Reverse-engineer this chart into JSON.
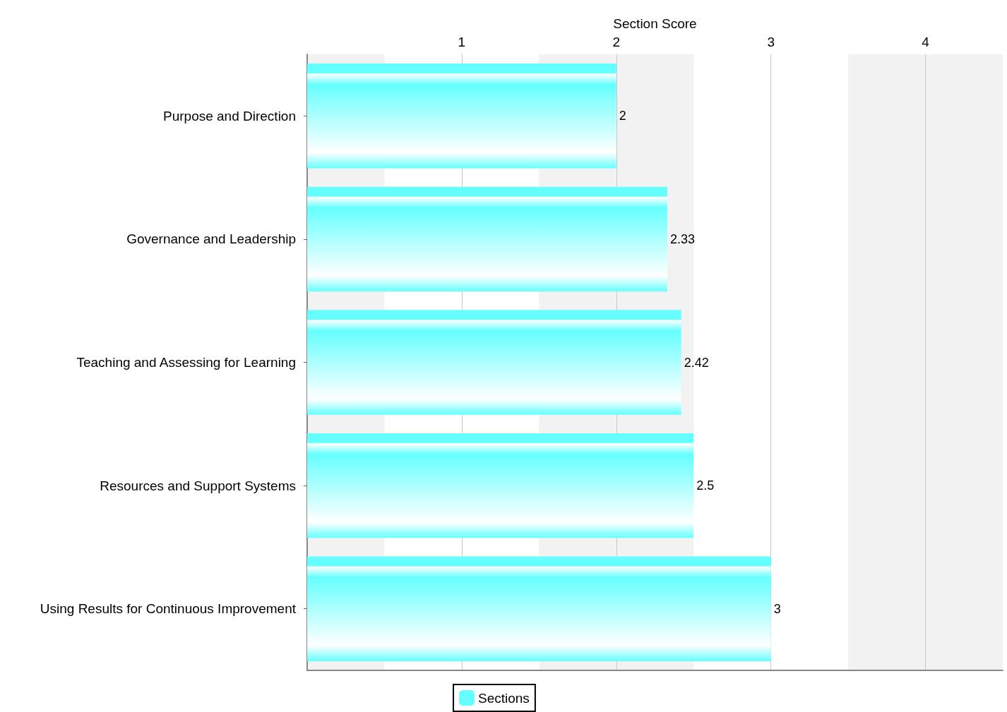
{
  "chart_data": {
    "type": "bar",
    "orientation": "horizontal",
    "xlabel": "Section Score",
    "categories": [
      "Purpose and Direction",
      "Governance and Leadership",
      "Teaching and Assessing for Learning",
      "Resources and Support Systems",
      "Using Results for Continuous Improvement"
    ],
    "series": [
      {
        "name": "Sections",
        "color": "#66ffff",
        "values": [
          2,
          2.33,
          2.42,
          2.5,
          3
        ]
      }
    ],
    "xlim": [
      0,
      4.5
    ],
    "xticks": [
      1,
      2,
      3,
      4
    ],
    "grid": "x",
    "data_labels": true,
    "legend": "bottom",
    "bands": [
      {
        "axis": "x",
        "from": 0,
        "to": 0.5,
        "color": "#f2f2f2"
      },
      {
        "axis": "x",
        "from": 1.5,
        "to": 2.5,
        "color": "#f2f2f2"
      },
      {
        "axis": "x",
        "from": 3.5,
        "to": 4.5,
        "color": "#f2f2f2"
      }
    ]
  }
}
